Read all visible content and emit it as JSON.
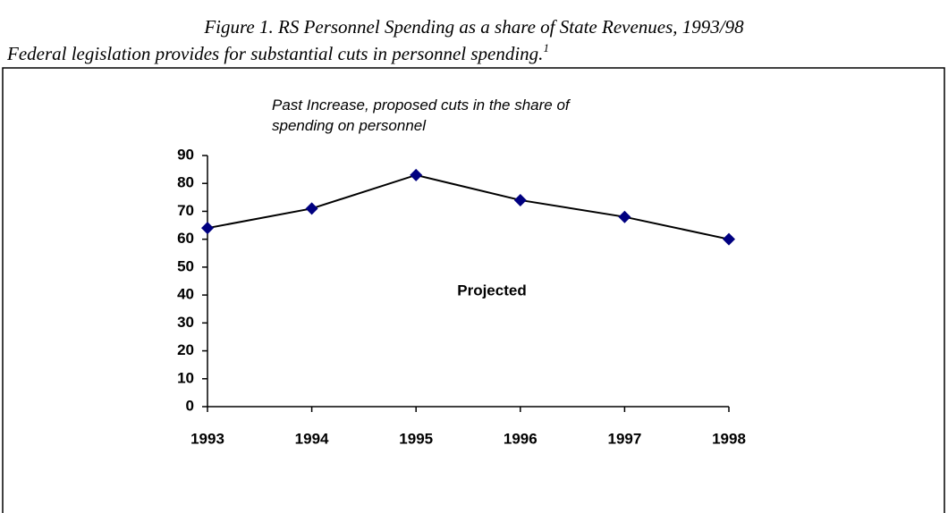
{
  "caption": {
    "title": "Figure 1. RS Personnel Spending as a share of State Revenues, 1993/98",
    "line2": "Federal legislation provides for substantial cuts in personnel spending.",
    "footnote_marker": "1"
  },
  "chart_data": {
    "type": "line",
    "subtitle": [
      "Past Increase, proposed cuts in the share of",
      "spending on personnel"
    ],
    "annotation": "Projected",
    "categories": [
      "1993",
      "1994",
      "1995",
      "1996",
      "1997",
      "1998"
    ],
    "series": [
      {
        "color": "#000080",
        "line_color": "#000000",
        "values": [
          64,
          71,
          83,
          74,
          68,
          60
        ]
      }
    ],
    "ylim": [
      0,
      90
    ],
    "yticks": [
      0,
      10,
      20,
      30,
      40,
      50,
      60,
      70,
      80,
      90
    ]
  }
}
